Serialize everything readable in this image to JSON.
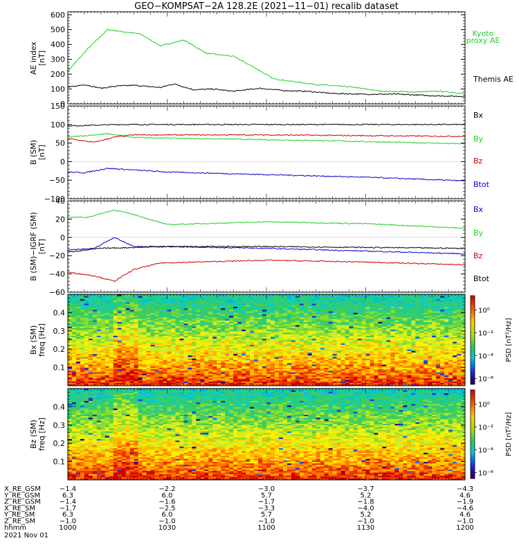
{
  "title": "GEO−KOMPSAT−2A 128.2E (2021−11−01) recalib dataset",
  "colors": {
    "green": "#22cc22",
    "red": "#cc0000",
    "blue": "#0000cc",
    "black": "#000000"
  },
  "time_axis": {
    "start": "10:00",
    "end": "12:00",
    "label_times": [
      "10:00",
      "10:30",
      "11:00",
      "11:30",
      "12:00"
    ]
  },
  "chart_data": [
    {
      "id": "ae",
      "type": "line",
      "ylabel": "AE index",
      "yunit": "[nT]",
      "ylim": [
        0,
        620
      ],
      "yticks": [
        "0",
        "100",
        "200",
        "300",
        "400",
        "500",
        "600"
      ],
      "ytick_values": [
        0,
        100,
        200,
        300,
        400,
        500,
        600
      ],
      "series": [
        {
          "name": "Kyoto proxy AE",
          "color": "#22cc22",
          "x_min": [
            0,
            6,
            12,
            22,
            28,
            35,
            42,
            50,
            56,
            62,
            68,
            75,
            85,
            95,
            105,
            112,
            120
          ],
          "y": [
            220,
            370,
            500,
            470,
            390,
            430,
            340,
            320,
            250,
            170,
            150,
            130,
            115,
            85,
            80,
            85,
            70
          ]
        },
        {
          "name": "Themis AE",
          "color": "#000000",
          "x_min": [
            0,
            5,
            10,
            15,
            20,
            28,
            32,
            38,
            44,
            50,
            58,
            65,
            72,
            80,
            90,
            100,
            110,
            120
          ],
          "y": [
            110,
            130,
            105,
            120,
            125,
            110,
            135,
            95,
            100,
            85,
            105,
            90,
            85,
            70,
            65,
            65,
            55,
            50
          ]
        }
      ],
      "legend": [
        "Kyoto proxy AE",
        "Themis AE"
      ]
    },
    {
      "id": "bsm",
      "type": "line",
      "ylabel": "B (SM)",
      "yunit": "[nT]",
      "ylim": [
        -100,
        150
      ],
      "yticks": [
        "−100",
        "−50",
        "0",
        "50",
        "100",
        "150"
      ],
      "ytick_values": [
        -100,
        -50,
        0,
        50,
        100,
        150
      ],
      "series": [
        {
          "name": "Bx",
          "color": "#000000",
          "x_min": [
            0,
            15,
            60,
            120
          ],
          "y": [
            96,
            100,
            100,
            100
          ]
        },
        {
          "name": "By",
          "color": "#22cc22",
          "x_min": [
            0,
            12,
            20,
            40,
            80,
            120
          ],
          "y": [
            66,
            75,
            65,
            62,
            56,
            48
          ]
        },
        {
          "name": "Bz",
          "color": "#cc0000",
          "x_min": [
            0,
            8,
            14,
            20,
            60,
            120
          ],
          "y": [
            62,
            52,
            66,
            72,
            72,
            68
          ]
        },
        {
          "name": "Btot",
          "color": "#0000cc",
          "x_min": [
            0,
            5,
            12,
            30,
            60,
            90,
            120
          ],
          "y": [
            -28,
            -30,
            -18,
            -28,
            -35,
            -42,
            -52
          ]
        }
      ],
      "legend": [
        "Bx",
        "By",
        "Bz",
        "Btot"
      ]
    },
    {
      "id": "bsm_igrf",
      "type": "line",
      "ylabel": "B (SM)−IGRF (SM)",
      "yunit": "[nT]",
      "ylim": [
        -60,
        40
      ],
      "yticks": [
        "−60",
        "−40",
        "−20",
        "0",
        "20",
        "40"
      ],
      "ytick_values": [
        -60,
        -40,
        -20,
        0,
        20,
        40
      ],
      "series": [
        {
          "name": "Bx",
          "color": "#0000cc",
          "x_min": [
            0,
            8,
            14,
            20,
            30,
            60,
            90,
            120
          ],
          "y": [
            -14,
            -12,
            0,
            -10,
            -10,
            -12,
            -15,
            -18
          ]
        },
        {
          "name": "By",
          "color": "#22cc22",
          "x_min": [
            0,
            6,
            14,
            20,
            30,
            60,
            90,
            120
          ],
          "y": [
            22,
            22,
            30,
            25,
            14,
            17,
            15,
            10
          ]
        },
        {
          "name": "Bz",
          "color": "#cc0000",
          "x_min": [
            0,
            8,
            14,
            20,
            28,
            60,
            90,
            120
          ],
          "y": [
            -38,
            -42,
            -48,
            -35,
            -28,
            -25,
            -27,
            -30
          ]
        },
        {
          "name": "Btot",
          "color": "#000000",
          "x_min": [
            0,
            5,
            10,
            30,
            60,
            120
          ],
          "y": [
            -16,
            -14,
            -12,
            -10,
            -10,
            -12
          ]
        }
      ],
      "legend": [
        "Bx",
        "By",
        "Bz",
        "Btot"
      ]
    },
    {
      "id": "bx_spec",
      "type": "heatmap",
      "ylabel": "Bx (SM)",
      "yunit": "freq [Hz]",
      "ylim": [
        0,
        0.5
      ],
      "yticks": [
        "0.1",
        "0.2",
        "0.3",
        "0.4"
      ],
      "ytick_values": [
        0.1,
        0.2,
        0.3,
        0.4
      ],
      "colorbar_label": "PSD [nT²/Hz]",
      "colorbar_ticks": [
        "10⁰",
        "10⁻²",
        "10⁻⁴",
        "10⁻⁶"
      ]
    },
    {
      "id": "bz_spec",
      "type": "heatmap",
      "ylabel": "Bz (SM)",
      "yunit": "freq [Hz]",
      "ylim": [
        0,
        0.5
      ],
      "yticks": [
        "0.1",
        "0.2",
        "0.3",
        "0.4"
      ],
      "ytick_values": [
        0.1,
        0.2,
        0.3,
        0.4
      ],
      "colorbar_label": "PSD [nT²/Hz]",
      "colorbar_ticks": [
        "10⁰",
        "10⁻²",
        "10⁻⁴",
        "10⁻⁶"
      ]
    }
  ],
  "ephemeris": {
    "rows": [
      {
        "label": "X_RE_GSM",
        "values": [
          "−1.4",
          "−2.2",
          "−3.0",
          "−3.7",
          "−4.3"
        ]
      },
      {
        "label": "Y_RE_GSM",
        "values": [
          "6.3",
          "6.0",
          "5.7",
          "5.2",
          "4.6"
        ]
      },
      {
        "label": "Z_RE_GSM",
        "values": [
          "−1.4",
          "−1.6",
          "−1.7",
          "−1.8",
          "−1.9"
        ]
      },
      {
        "label": "X_RE_SM",
        "values": [
          "−1.7",
          "−2.5",
          "−3.3",
          "−4.0",
          "−4.6"
        ]
      },
      {
        "label": "Y_RE_SM",
        "values": [
          "6.3",
          "6.0",
          "5.7",
          "5.2",
          "4.6"
        ]
      },
      {
        "label": "Z_RE_SM",
        "values": [
          "−1.0",
          "−1.0",
          "−1.0",
          "−1.0",
          "−1.0"
        ]
      },
      {
        "label": "hhmm",
        "values": [
          "1000",
          "1030",
          "1100",
          "1130",
          "1200"
        ]
      }
    ],
    "date": "2021 Nov 01"
  }
}
